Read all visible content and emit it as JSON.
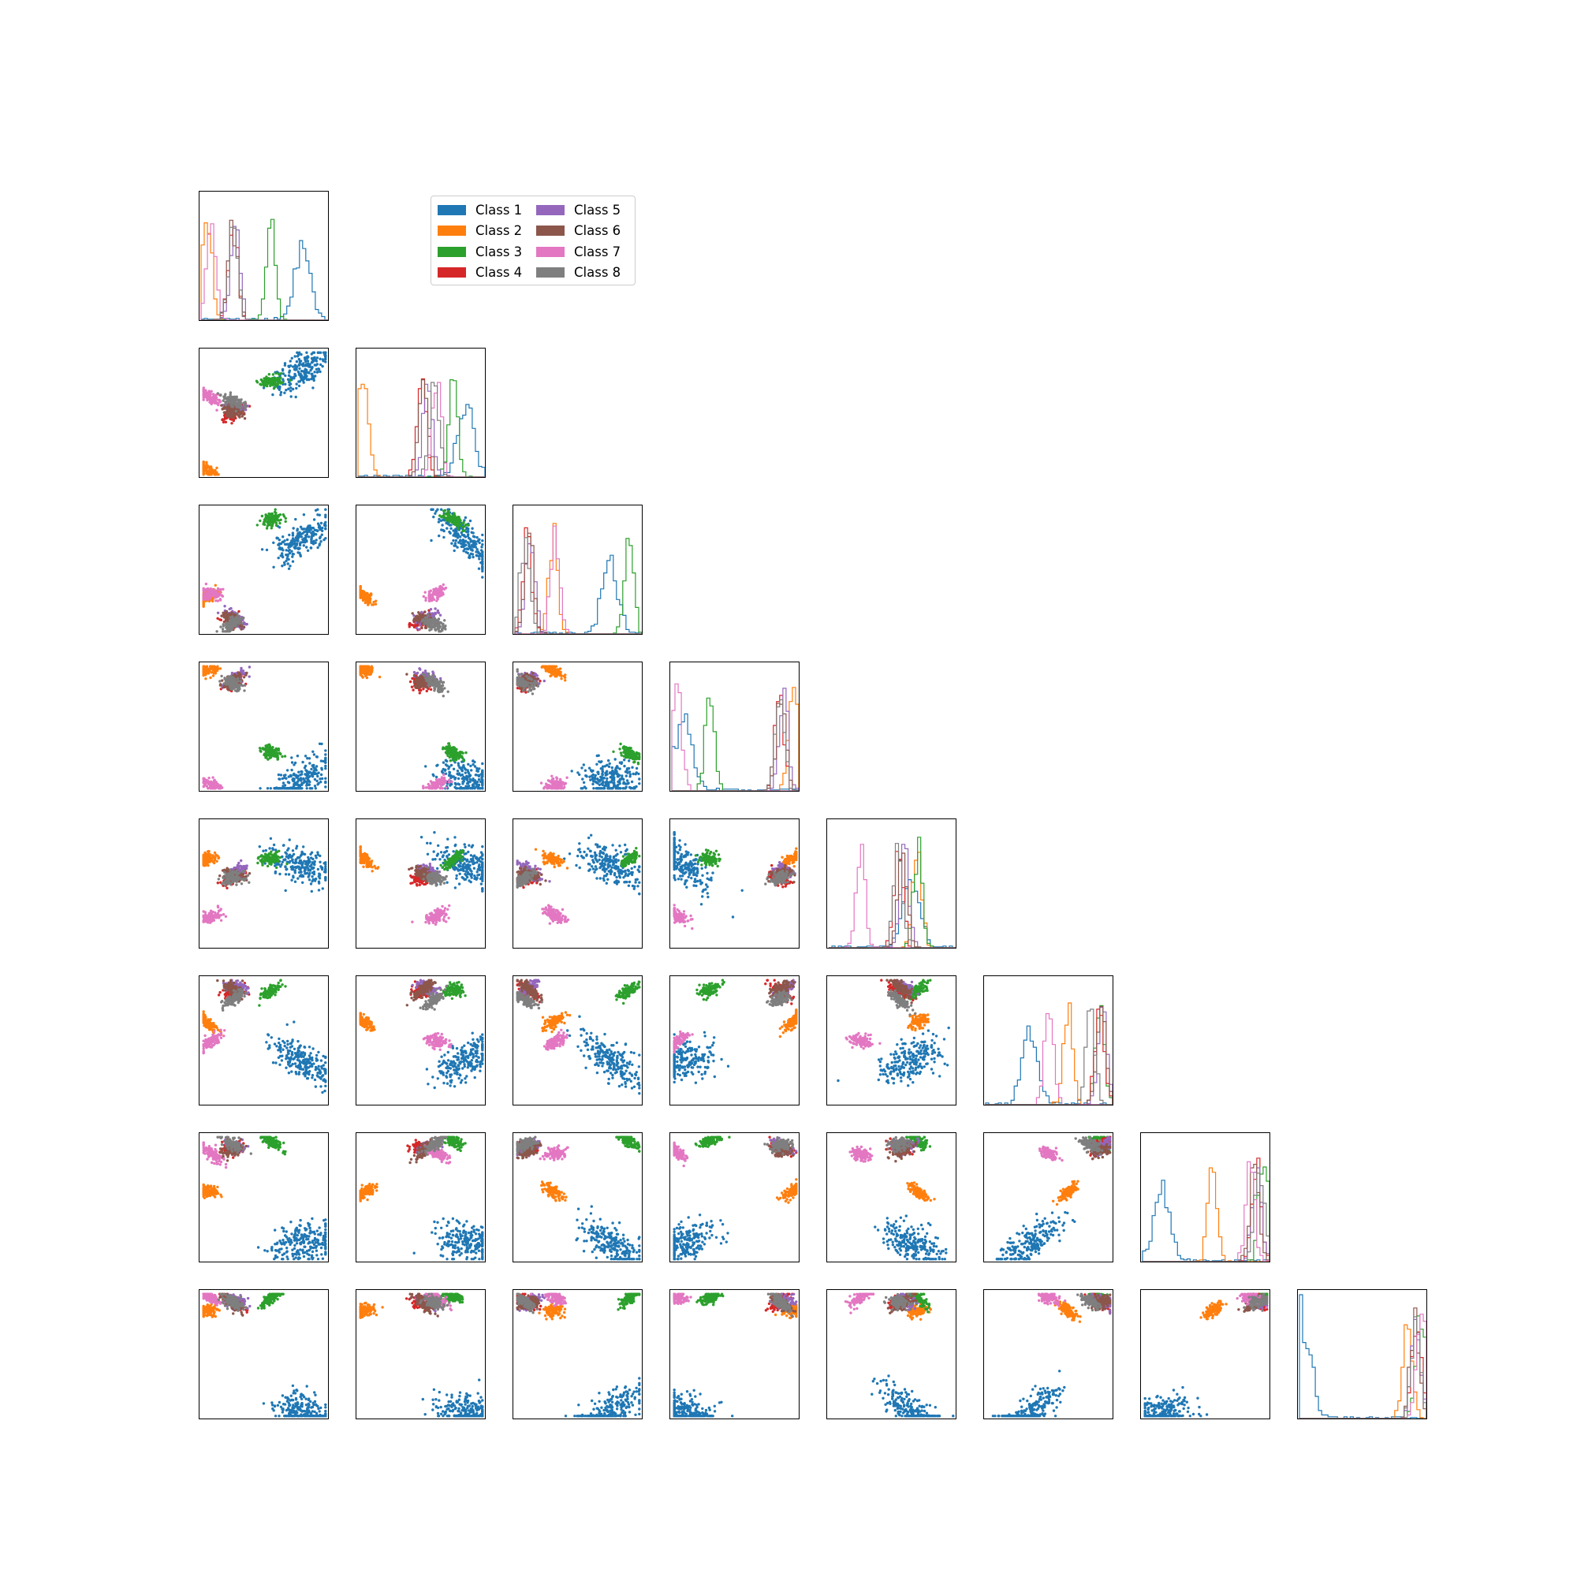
{
  "figure": {
    "type": "corner_plot",
    "n_dims": 8
  },
  "legend": {
    "placement": "upper-center",
    "items": [
      {
        "label": "Class 1",
        "color": "#1f77b4"
      },
      {
        "label": "Class 2",
        "color": "#ff7f0e"
      },
      {
        "label": "Class 3",
        "color": "#2ca02c"
      },
      {
        "label": "Class 4",
        "color": "#d62728"
      },
      {
        "label": "Class 5",
        "color": "#9467bd"
      },
      {
        "label": "Class 6",
        "color": "#8c564b"
      },
      {
        "label": "Class 7",
        "color": "#e377c2"
      },
      {
        "label": "Class 8",
        "color": "#7f7f7f"
      }
    ]
  },
  "chart_data": {
    "type": "scatter",
    "subtype": "corner plot (pairwise scatter matrix with diagonal step histograms)",
    "dimensions": 8,
    "axes_ticks": "none",
    "grid": false,
    "legend_placement": "upper-center",
    "series": [
      {
        "name": "Class 1",
        "color": "#1f77b4",
        "centers": [
          0.8,
          0.85,
          0.75,
          0.1,
          0.65,
          0.35,
          0.15,
          0.05
        ]
      },
      {
        "name": "Class 2",
        "color": "#ff7f0e",
        "centers": [
          0.05,
          0.05,
          0.3,
          0.95,
          0.7,
          0.65,
          0.55,
          0.85
        ]
      },
      {
        "name": "Class 3",
        "color": "#2ca02c",
        "centers": [
          0.55,
          0.75,
          0.9,
          0.3,
          0.7,
          0.9,
          0.95,
          0.95
        ]
      },
      {
        "name": "Class 4",
        "color": "#d62728",
        "centers": [
          0.25,
          0.5,
          0.1,
          0.85,
          0.55,
          0.9,
          0.9,
          0.92
        ]
      },
      {
        "name": "Class 5",
        "color": "#9467bd",
        "centers": [
          0.27,
          0.55,
          0.12,
          0.88,
          0.6,
          0.92,
          0.9,
          0.92
        ]
      },
      {
        "name": "Class 6",
        "color": "#8c564b",
        "centers": [
          0.25,
          0.52,
          0.11,
          0.86,
          0.58,
          0.91,
          0.88,
          0.91
        ]
      },
      {
        "name": "Class 7",
        "color": "#e377c2",
        "centers": [
          0.08,
          0.62,
          0.32,
          0.05,
          0.25,
          0.5,
          0.85,
          0.95
        ]
      },
      {
        "name": "Class 8",
        "color": "#7f7f7f",
        "centers": [
          0.25,
          0.6,
          0.08,
          0.85,
          0.55,
          0.83,
          0.92,
          0.92
        ]
      }
    ]
  }
}
